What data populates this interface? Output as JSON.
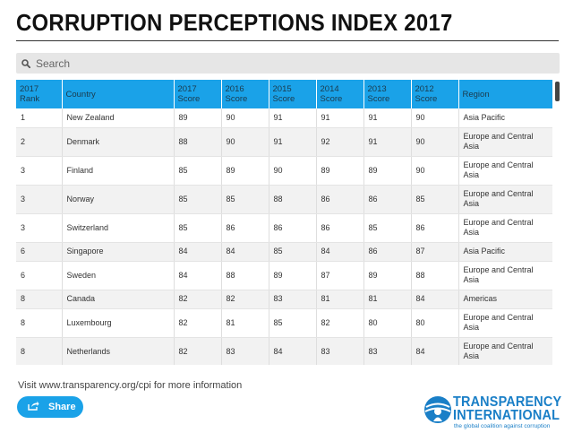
{
  "page": {
    "title": "CORRUPTION PERCEPTIONS INDEX 2017",
    "accent_color": "#1aa2e8"
  },
  "search": {
    "placeholder": "Search",
    "icon": "search-icon"
  },
  "table": {
    "headers": [
      [
        "2017",
        "Rank"
      ],
      [
        "Country"
      ],
      [
        "2017",
        "Score"
      ],
      [
        "2016",
        "Score"
      ],
      [
        "2015",
        "Score"
      ],
      [
        "2014",
        "Score"
      ],
      [
        "2013",
        "Score"
      ],
      [
        "2012",
        "Score"
      ],
      [
        "Region"
      ]
    ],
    "rows": [
      {
        "rank": "1",
        "country": "New Zealand",
        "s2017": "89",
        "s2016": "90",
        "s2015": "91",
        "s2014": "91",
        "s2013": "91",
        "s2012": "90",
        "region": "Asia Pacific"
      },
      {
        "rank": "2",
        "country": "Denmark",
        "s2017": "88",
        "s2016": "90",
        "s2015": "91",
        "s2014": "92",
        "s2013": "91",
        "s2012": "90",
        "region": "Europe and Central Asia"
      },
      {
        "rank": "3",
        "country": "Finland",
        "s2017": "85",
        "s2016": "89",
        "s2015": "90",
        "s2014": "89",
        "s2013": "89",
        "s2012": "90",
        "region": "Europe and Central Asia"
      },
      {
        "rank": "3",
        "country": "Norway",
        "s2017": "85",
        "s2016": "85",
        "s2015": "88",
        "s2014": "86",
        "s2013": "86",
        "s2012": "85",
        "region": "Europe and Central Asia"
      },
      {
        "rank": "3",
        "country": "Switzerland",
        "s2017": "85",
        "s2016": "86",
        "s2015": "86",
        "s2014": "86",
        "s2013": "85",
        "s2012": "86",
        "region": "Europe and Central Asia"
      },
      {
        "rank": "6",
        "country": "Singapore",
        "s2017": "84",
        "s2016": "84",
        "s2015": "85",
        "s2014": "84",
        "s2013": "86",
        "s2012": "87",
        "region": "Asia Pacific"
      },
      {
        "rank": "6",
        "country": "Sweden",
        "s2017": "84",
        "s2016": "88",
        "s2015": "89",
        "s2014": "87",
        "s2013": "89",
        "s2012": "88",
        "region": "Europe and Central Asia"
      },
      {
        "rank": "8",
        "country": "Canada",
        "s2017": "82",
        "s2016": "82",
        "s2015": "83",
        "s2014": "81",
        "s2013": "81",
        "s2012": "84",
        "region": "Americas"
      },
      {
        "rank": "8",
        "country": "Luxembourg",
        "s2017": "82",
        "s2016": "81",
        "s2015": "85",
        "s2014": "82",
        "s2013": "80",
        "s2012": "80",
        "region": "Europe and Central Asia"
      },
      {
        "rank": "8",
        "country": "Netherlands",
        "s2017": "82",
        "s2016": "83",
        "s2015": "84",
        "s2014": "83",
        "s2013": "83",
        "s2012": "84",
        "region": "Europe and Central Asia"
      }
    ]
  },
  "footer": {
    "note": "Visit www.transparency.org/cpi for more information",
    "share_label": "Share",
    "share_icon": "share-icon"
  },
  "logo": {
    "line1": "TRANSPARENCY",
    "line2": "INTERNATIONAL",
    "tagline": "the global coalition against corruption",
    "color": "#1a7fc7"
  }
}
